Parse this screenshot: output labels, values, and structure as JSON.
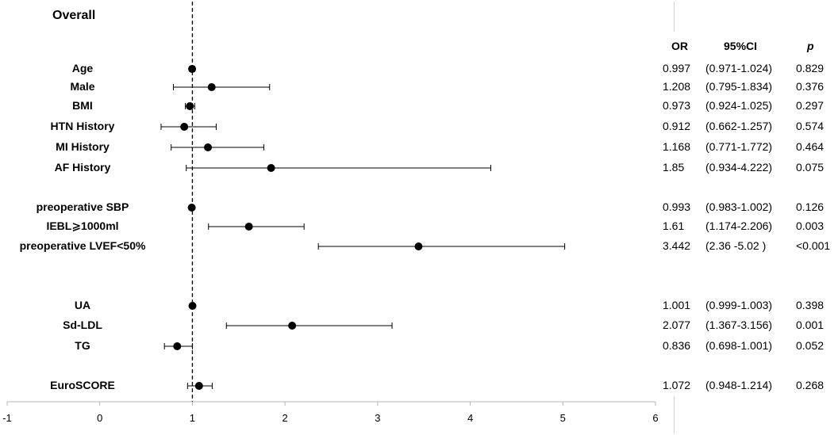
{
  "chart_data": {
    "type": "forest",
    "title": "Overall",
    "xlim": [
      -1,
      6
    ],
    "xticks": [
      "-1",
      "0",
      "1",
      "2",
      "3",
      "4",
      "5",
      "6"
    ],
    "reference_line": 1,
    "columns": {
      "or": "OR",
      "ci": "95%CI",
      "p": "p"
    },
    "rows": [
      {
        "label": "Age",
        "or": 0.997,
        "lo": 0.971,
        "hi": 1.024,
        "or_text": "0.997",
        "ci_text": "(0.971-1.024)",
        "p_text": "0.829"
      },
      {
        "label": "Male",
        "or": 1.208,
        "lo": 0.795,
        "hi": 1.834,
        "or_text": "1.208",
        "ci_text": "(0.795-1.834)",
        "p_text": "0.376"
      },
      {
        "label": "BMI",
        "or": 0.973,
        "lo": 0.924,
        "hi": 1.025,
        "or_text": "0.973",
        "ci_text": "(0.924-1.025)",
        "p_text": "0.297"
      },
      {
        "label": "HTN History",
        "or": 0.912,
        "lo": 0.662,
        "hi": 1.257,
        "or_text": "0.912",
        "ci_text": "(0.662-1.257)",
        "p_text": "0.574"
      },
      {
        "label": "MI History",
        "or": 1.168,
        "lo": 0.771,
        "hi": 1.772,
        "or_text": "1.168",
        "ci_text": "(0.771-1.772)",
        "p_text": "0.464"
      },
      {
        "label": "AF History",
        "or": 1.85,
        "lo": 0.934,
        "hi": 4.222,
        "or_text": "1.85",
        "ci_text": "(0.934-4.222)",
        "p_text": "0.075"
      },
      {
        "label": "preoperative SBP",
        "or": 0.993,
        "lo": 0.983,
        "hi": 1.002,
        "or_text": "0.993",
        "ci_text": "(0.983-1.002)",
        "p_text": "0.126"
      },
      {
        "label": "IEBL⩾1000ml",
        "or": 1.61,
        "lo": 1.174,
        "hi": 2.206,
        "or_text": "1.61",
        "ci_text": "(1.174-2.206)",
        "p_text": "0.003"
      },
      {
        "label": "preoperative LVEF<50%",
        "or": 3.442,
        "lo": 2.36,
        "hi": 5.02,
        "or_text": "3.442",
        "ci_text": "(2.36 -5.02 )",
        "p_text": "<0.001"
      },
      {
        "label": "UA",
        "or": 1.001,
        "lo": 0.999,
        "hi": 1.003,
        "or_text": "1.001",
        "ci_text": "(0.999-1.003)",
        "p_text": "0.398"
      },
      {
        "label": "Sd-LDL",
        "or": 2.077,
        "lo": 1.367,
        "hi": 3.156,
        "or_text": "2.077",
        "ci_text": "(1.367-3.156)",
        "p_text": "0.001"
      },
      {
        "label": "TG",
        "or": 0.836,
        "lo": 0.698,
        "hi": 1.001,
        "or_text": "0.836",
        "ci_text": "(0.698-1.001)",
        "p_text": "0.052"
      },
      {
        "label": "EuroSCORE",
        "or": 1.072,
        "lo": 0.948,
        "hi": 1.214,
        "or_text": "1.072",
        "ci_text": "(0.948-1.214)",
        "p_text": "0.268"
      }
    ]
  }
}
